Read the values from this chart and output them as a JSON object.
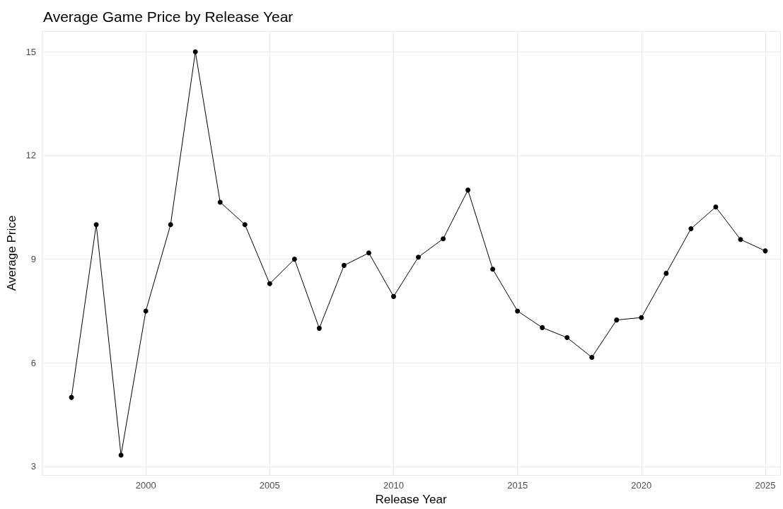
{
  "chart_data": {
    "type": "line",
    "title": "Average Game Price by Release Year",
    "xlabel": "Release Year",
    "ylabel": "Average Price",
    "x": [
      1997,
      1998,
      1999,
      2000,
      2001,
      2002,
      2003,
      2004,
      2005,
      2006,
      2007,
      2008,
      2009,
      2010,
      2011,
      2012,
      2013,
      2014,
      2015,
      2016,
      2017,
      2018,
      2019,
      2020,
      2021,
      2022,
      2023,
      2024,
      2025
    ],
    "series": [
      {
        "color": "#000000",
        "values": [
          5.0,
          10.0,
          3.33,
          7.5,
          10.0,
          15.0,
          10.65,
          10.0,
          8.29,
          9.0,
          7.0,
          8.82,
          9.18,
          7.92,
          9.06,
          9.59,
          11.0,
          8.71,
          7.5,
          7.02,
          6.73,
          6.16,
          7.24,
          7.31,
          8.59,
          9.88,
          10.51,
          9.57,
          9.24
        ]
      }
    ],
    "xlim": [
      1995.8,
      2025.6
    ],
    "xticks": [
      2000,
      2005,
      2010,
      2015,
      2020,
      2025
    ],
    "ylim": [
      2.75,
      15.6
    ],
    "yticks": [
      3,
      6,
      9,
      12,
      15
    ],
    "grid": true,
    "marker": "circle",
    "line_style": "solid"
  }
}
